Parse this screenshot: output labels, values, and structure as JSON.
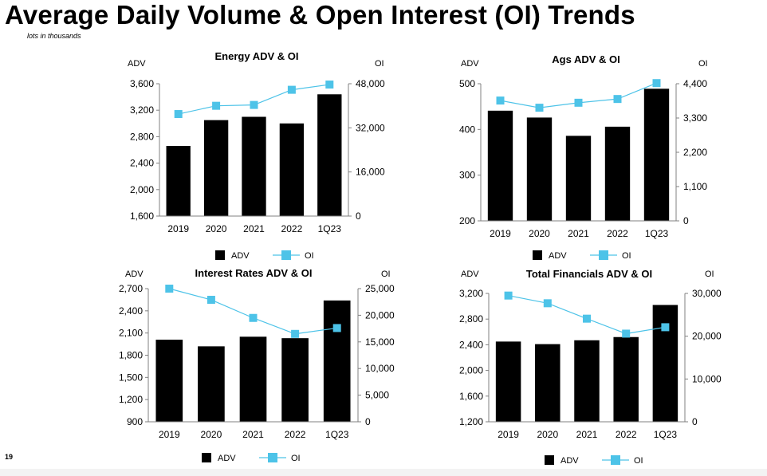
{
  "page": {
    "title": "Average Daily Volume & Open Interest (OI) Trends",
    "subtitle": "lots in thousands",
    "page_number": "19"
  },
  "colors": {
    "adv_bar": "#000000",
    "oi_line": "#4dc3e8",
    "axis": "#808080"
  },
  "chart_data": [
    {
      "type": "bar",
      "title": "Energy ADV & OI",
      "left_axis_label": "ADV",
      "right_axis_label": "OI",
      "categories": [
        "2019",
        "2020",
        "2021",
        "2022",
        "1Q23"
      ],
      "ylim": [
        1600,
        3600
      ],
      "y_ticks": [
        "1,600",
        "2,000",
        "2,400",
        "2,800",
        "3,200",
        "3,600"
      ],
      "y2lim": [
        0,
        48000
      ],
      "y2_ticks": [
        "0",
        "16,000",
        "32,000",
        "48,000"
      ],
      "series": [
        {
          "name": "ADV",
          "kind": "bar",
          "axis": "left",
          "values": [
            2660,
            3050,
            3100,
            3000,
            3440
          ]
        },
        {
          "name": "OI",
          "kind": "line",
          "axis": "right",
          "values": [
            37000,
            40000,
            40300,
            45800,
            47700
          ]
        }
      ],
      "legend": "bottom"
    },
    {
      "type": "bar",
      "title": "Ags ADV & OI",
      "left_axis_label": "ADV",
      "right_axis_label": "OI",
      "categories": [
        "2019",
        "2020",
        "2021",
        "2022",
        "1Q23"
      ],
      "ylim": [
        200,
        500
      ],
      "y_ticks": [
        "200",
        "300",
        "400",
        "500"
      ],
      "y2lim": [
        0,
        4400
      ],
      "y2_ticks": [
        "0",
        "1,100",
        "2,200",
        "3,300",
        "4,400"
      ],
      "series": [
        {
          "name": "ADV",
          "kind": "bar",
          "axis": "left",
          "values": [
            441,
            426,
            386,
            406,
            489
          ]
        },
        {
          "name": "OI",
          "kind": "line",
          "axis": "right",
          "values": [
            3860,
            3630,
            3790,
            3910,
            4420
          ]
        }
      ],
      "legend": "bottom"
    },
    {
      "type": "bar",
      "title": "Interest Rates ADV & OI",
      "left_axis_label": "ADV",
      "right_axis_label": "OI",
      "categories": [
        "2019",
        "2020",
        "2021",
        "2022",
        "1Q23"
      ],
      "ylim": [
        900,
        2700
      ],
      "y_ticks": [
        "900",
        "1,200",
        "1,500",
        "1,800",
        "2,100",
        "2,400",
        "2,700"
      ],
      "y2lim": [
        0,
        25000
      ],
      "y2_ticks": [
        "0",
        "5,000",
        "10,000",
        "15,000",
        "20,000",
        "25,000"
      ],
      "series": [
        {
          "name": "ADV",
          "kind": "bar",
          "axis": "left",
          "values": [
            2010,
            1920,
            2050,
            2030,
            2540
          ]
        },
        {
          "name": "OI",
          "kind": "line",
          "axis": "right",
          "values": [
            25000,
            22900,
            19500,
            16500,
            17600
          ]
        }
      ],
      "legend": "bottom"
    },
    {
      "type": "bar",
      "title": "Total Financials ADV & OI",
      "left_axis_label": "ADV",
      "right_axis_label": "OI",
      "categories": [
        "2019",
        "2020",
        "2021",
        "2022",
        "1Q23"
      ],
      "ylim": [
        1200,
        3200
      ],
      "y_ticks": [
        "1,200",
        "1,600",
        "2,000",
        "2,400",
        "2,800",
        "3,200"
      ],
      "y2lim": [
        0,
        30000
      ],
      "y2_ticks": [
        "0",
        "10,000",
        "20,000",
        "30,000"
      ],
      "series": [
        {
          "name": "ADV",
          "kind": "bar",
          "axis": "left",
          "values": [
            2450,
            2410,
            2470,
            2520,
            3020
          ]
        },
        {
          "name": "OI",
          "kind": "line",
          "axis": "right",
          "values": [
            29500,
            27700,
            24100,
            20600,
            22100
          ]
        }
      ],
      "legend": "bottom"
    }
  ]
}
